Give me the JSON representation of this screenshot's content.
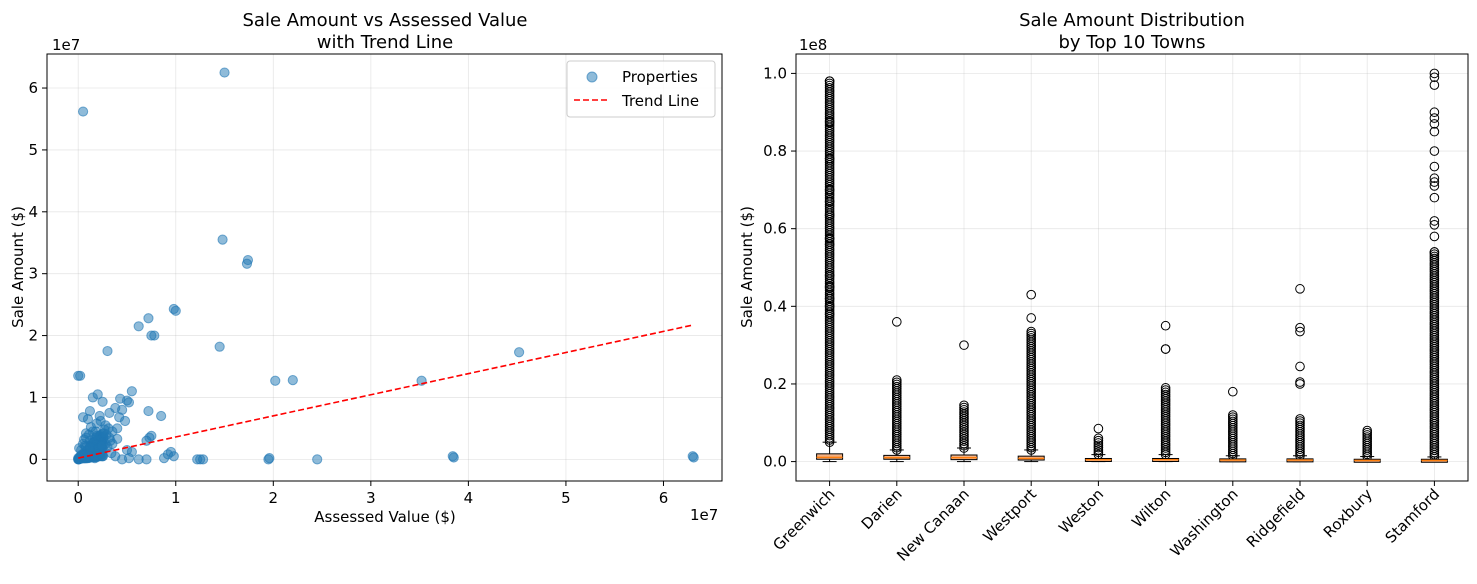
{
  "chart_data": [
    {
      "type": "scatter",
      "title": [
        "Sale Amount vs Assessed Value",
        "with Trend Line"
      ],
      "xlabel": "Assessed Value ($)",
      "ylabel": "Sale Amount ($)",
      "x_offset_label": "1e7",
      "y_offset_label": "1e7",
      "xlim": [
        -0.32,
        6.6
      ],
      "ylim": [
        -0.35,
        6.55
      ],
      "xticks": [
        0,
        1,
        2,
        3,
        4,
        5,
        6
      ],
      "yticks": [
        0,
        1,
        2,
        3,
        4,
        5,
        6
      ],
      "grid": true,
      "legend": {
        "placement": "top-right",
        "entries": [
          "Properties",
          "Trend Line"
        ]
      },
      "scatter_color": "#1f77b4",
      "trend_color": "#ff0000",
      "trend_line": {
        "x": [
          0.0,
          6.3
        ],
        "y": [
          0.02,
          2.17
        ]
      },
      "series": [
        {
          "name": "Properties",
          "points": [
            [
              1.5,
              6.25
            ],
            [
              0.05,
              5.62
            ],
            [
              1.48,
              3.55
            ],
            [
              1.74,
              3.22
            ],
            [
              1.73,
              3.16
            ],
            [
              0.98,
              2.43
            ],
            [
              1.0,
              2.4
            ],
            [
              0.72,
              2.28
            ],
            [
              0.62,
              2.15
            ],
            [
              0.75,
              2.0
            ],
            [
              0.78,
              2.0
            ],
            [
              1.45,
              1.82
            ],
            [
              0.3,
              1.75
            ],
            [
              4.52,
              1.73
            ],
            [
              2.2,
              1.28
            ],
            [
              2.02,
              1.27
            ],
            [
              3.52,
              1.27
            ],
            [
              0.0,
              1.35
            ],
            [
              0.02,
              1.35
            ],
            [
              0.55,
              1.1
            ],
            [
              0.5,
              0.95
            ],
            [
              0.52,
              0.92
            ],
            [
              0.43,
              0.98
            ],
            [
              0.15,
              1.0
            ],
            [
              0.2,
              1.05
            ],
            [
              0.25,
              0.93
            ],
            [
              0.38,
              0.83
            ],
            [
              0.45,
              0.8
            ],
            [
              0.72,
              0.78
            ],
            [
              0.85,
              0.7
            ],
            [
              0.12,
              0.78
            ],
            [
              0.05,
              0.68
            ],
            [
              0.1,
              0.65
            ],
            [
              0.22,
              0.7
            ],
            [
              0.32,
              0.75
            ],
            [
              0.42,
              0.68
            ],
            [
              0.48,
              0.62
            ],
            [
              0.28,
              0.55
            ],
            [
              0.4,
              0.5
            ],
            [
              0.35,
              0.45
            ],
            [
              0.75,
              0.38
            ],
            [
              0.73,
              0.35
            ],
            [
              0.7,
              0.3
            ],
            [
              0.95,
              0.12
            ],
            [
              0.92,
              0.08
            ],
            [
              0.98,
              0.05
            ],
            [
              0.88,
              0.02
            ],
            [
              0.62,
              0.0
            ],
            [
              0.7,
              0.0
            ],
            [
              0.45,
              0.0
            ],
            [
              0.52,
              0.02
            ],
            [
              0.38,
              0.05
            ],
            [
              0.34,
              0.1
            ],
            [
              0.5,
              0.15
            ],
            [
              0.55,
              0.12
            ],
            [
              1.25,
              0.0
            ],
            [
              1.28,
              0.0
            ],
            [
              1.22,
              0.0
            ],
            [
              1.95,
              0.0
            ],
            [
              1.96,
              0.02
            ],
            [
              2.45,
              0.0
            ],
            [
              3.85,
              0.03
            ],
            [
              3.84,
              0.05
            ],
            [
              6.3,
              0.05
            ],
            [
              6.31,
              0.03
            ],
            [
              0.4,
              0.33
            ],
            [
              0.18,
              0.45
            ],
            [
              0.08,
              0.42
            ],
            [
              0.12,
              0.3
            ],
            [
              0.26,
              0.35
            ],
            [
              0.05,
              0.25
            ],
            [
              0.16,
              0.22
            ],
            [
              0.3,
              0.2
            ],
            [
              0.24,
              0.15
            ],
            [
              0.06,
              0.1
            ],
            [
              0.02,
              0.05
            ],
            [
              0.0,
              0.02
            ],
            [
              0.03,
              0.15
            ],
            [
              0.08,
              0.2
            ],
            [
              0.1,
              0.05
            ],
            [
              0.14,
              0.12
            ],
            [
              0.2,
              0.08
            ],
            [
              0.22,
              0.3
            ],
            [
              0.28,
              0.25
            ],
            [
              0.18,
              0.35
            ],
            [
              0.33,
              0.3
            ],
            [
              0.13,
              0.52
            ],
            [
              0.19,
              0.58
            ],
            [
              0.23,
              0.62
            ],
            [
              0.27,
              0.48
            ],
            [
              0.11,
              0.4
            ],
            [
              0.06,
              0.32
            ],
            [
              0.16,
              0.28
            ],
            [
              0.21,
              0.18
            ],
            [
              0.09,
              0.14
            ],
            [
              0.04,
              0.08
            ],
            [
              0.17,
              0.02
            ],
            [
              0.25,
              0.05
            ],
            [
              0.29,
              0.4
            ],
            [
              0.31,
              0.5
            ],
            [
              0.01,
              0.18
            ],
            [
              0.07,
              0.22
            ],
            [
              0.15,
              0.45
            ],
            [
              0.35,
              0.25
            ],
            [
              0.32,
              0.35
            ],
            [
              0.26,
              0.42
            ],
            [
              0.19,
              0.38
            ],
            [
              0.12,
              0.2
            ],
            [
              0.24,
              0.22
            ],
            [
              0.08,
              0.35
            ]
          ]
        }
      ]
    },
    {
      "type": "box",
      "title": [
        "Sale Amount Distribution",
        "by Top 10 Towns"
      ],
      "xlabel": "",
      "ylabel": "Sale Amount ($)",
      "y_offset_label": "1e8",
      "ylim": [
        -0.05,
        1.05
      ],
      "yticks": [
        "0.0",
        "0.2",
        "0.4",
        "0.6",
        "0.8",
        "1.0"
      ],
      "ytick_values": [
        0.0,
        0.2,
        0.4,
        0.6,
        0.8,
        1.0
      ],
      "grid": true,
      "box_color": "#f4b183",
      "median_color": "#ff7f0e",
      "categories": [
        "Greenwich",
        "Darien",
        "New Canaan",
        "Westport",
        "Weston",
        "Wilton",
        "Washington",
        "Ridgefield",
        "Roxbury",
        "Stamford"
      ],
      "boxes": [
        {
          "q1": 0.006,
          "median": 0.011,
          "q3": 0.02,
          "whisker_low": 0.0,
          "whisker_high": 0.05,
          "outlier_max": 0.98,
          "outliers": [
            0.98,
            0.875,
            0.78,
            0.7,
            0.67,
            0.635,
            0.575,
            0.56,
            0.48,
            0.45,
            0.42,
            0.4,
            0.38
          ]
        },
        {
          "q1": 0.006,
          "median": 0.01,
          "q3": 0.016,
          "whisker_low": 0.0,
          "whisker_high": 0.03,
          "outlier_max": 0.21,
          "outliers": [
            0.36
          ]
        },
        {
          "q1": 0.005,
          "median": 0.01,
          "q3": 0.017,
          "whisker_low": 0.0,
          "whisker_high": 0.035,
          "outlier_max": 0.145,
          "outliers": [
            0.3
          ]
        },
        {
          "q1": 0.004,
          "median": 0.008,
          "q3": 0.014,
          "whisker_low": 0.0,
          "whisker_high": 0.03,
          "outlier_max": 0.33,
          "outliers": [
            0.43,
            0.37,
            0.335
          ]
        },
        {
          "q1": 0.002,
          "median": 0.005,
          "q3": 0.008,
          "whisker_low": 0.0,
          "whisker_high": 0.018,
          "outlier_max": 0.06,
          "outliers": [
            0.085
          ]
        },
        {
          "q1": 0.002,
          "median": 0.005,
          "q3": 0.008,
          "whisker_low": 0.0,
          "whisker_high": 0.018,
          "outlier_max": 0.19,
          "outliers": [
            0.35,
            0.29,
            0.29
          ]
        },
        {
          "q1": 0.001,
          "median": 0.004,
          "q3": 0.007,
          "whisker_low": 0.0,
          "whisker_high": 0.015,
          "outlier_max": 0.12,
          "outliers": [
            0.18
          ]
        },
        {
          "q1": 0.001,
          "median": 0.004,
          "q3": 0.007,
          "whisker_low": 0.0,
          "whisker_high": 0.015,
          "outlier_max": 0.11,
          "outliers": [
            0.445,
            0.345,
            0.335,
            0.245,
            0.205,
            0.2
          ]
        },
        {
          "q1": 0.001,
          "median": 0.003,
          "q3": 0.006,
          "whisker_low": 0.0,
          "whisker_high": 0.013,
          "outlier_max": 0.08,
          "outliers": []
        },
        {
          "q1": 0.0,
          "median": 0.003,
          "q3": 0.006,
          "whisker_low": 0.0,
          "whisker_high": 0.012,
          "outlier_max": 0.54,
          "outliers": [
            1.0,
            0.99,
            0.97,
            0.9,
            0.885,
            0.87,
            0.85,
            0.8,
            0.76,
            0.73,
            0.72,
            0.71,
            0.68,
            0.62,
            0.61,
            0.58,
            0.54
          ]
        }
      ]
    }
  ]
}
